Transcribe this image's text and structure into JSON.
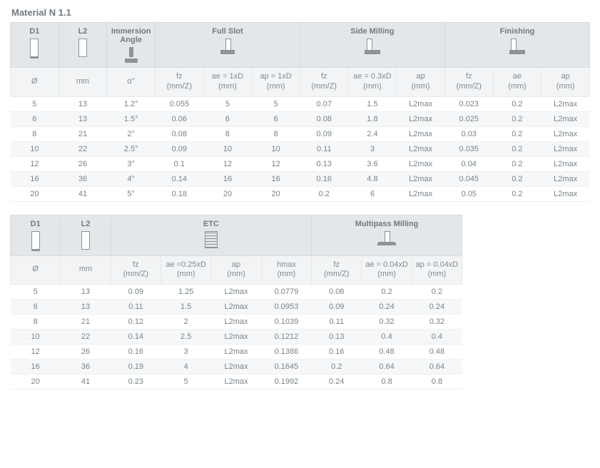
{
  "title": "Material N 1.1",
  "table1": {
    "groups": [
      {
        "label": "D1",
        "span": 1,
        "icon": "d1"
      },
      {
        "label": "L2",
        "span": 1,
        "icon": "l2"
      },
      {
        "label": "Immersion Angle",
        "span": 1,
        "icon": "imm"
      },
      {
        "label": "Full Slot",
        "span": 3,
        "icon": "slot"
      },
      {
        "label": "Side Milling",
        "span": 3,
        "icon": "side"
      },
      {
        "label": "Finishing",
        "span": 3,
        "icon": "fin"
      }
    ],
    "units": [
      "Ø",
      "mm",
      "α°",
      "fz (mm/Z)",
      "ae = 1xD (mm)",
      "ap = 1xD (mm)",
      "fz (mm/Z)",
      "ae = 0.3xD (mm)",
      "ap (mm)",
      "fz (mm/Z)",
      "ae (mm)",
      "ap (mm)"
    ],
    "rows": [
      [
        "5",
        "13",
        "1.2°",
        "0.055",
        "5",
        "5",
        "0.07",
        "1.5",
        "L2max",
        "0.023",
        "0.2",
        "L2max"
      ],
      [
        "6",
        "13",
        "1.5°",
        "0.06",
        "6",
        "6",
        "0.08",
        "1.8",
        "L2max",
        "0.025",
        "0.2",
        "L2max"
      ],
      [
        "8",
        "21",
        "2°",
        "0.08",
        "8",
        "8",
        "0.09",
        "2.4",
        "L2max",
        "0.03",
        "0.2",
        "L2max"
      ],
      [
        "10",
        "22",
        "2.5°",
        "0.09",
        "10",
        "10",
        "0.11",
        "3",
        "L2max",
        "0.035",
        "0.2",
        "L2max"
      ],
      [
        "12",
        "26",
        "3°",
        "0.1",
        "12",
        "12",
        "0.13",
        "3.6",
        "L2max",
        "0.04",
        "0.2",
        "L2max"
      ],
      [
        "16",
        "36",
        "4°",
        "0.14",
        "16",
        "16",
        "0.16",
        "4.8",
        "L2max",
        "0.045",
        "0.2",
        "L2max"
      ],
      [
        "20",
        "41",
        "5°",
        "0.18",
        "20",
        "20",
        "0.2",
        "6",
        "L2max",
        "0.05",
        "0.2",
        "L2max"
      ]
    ]
  },
  "table2": {
    "width_pct": 78,
    "groups": [
      {
        "label": "D1",
        "span": 1,
        "icon": "d1"
      },
      {
        "label": "L2",
        "span": 1,
        "icon": "l2"
      },
      {
        "label": "ETC",
        "span": 4,
        "icon": "etc"
      },
      {
        "label": "Multipass Milling",
        "span": 3,
        "icon": "multi"
      }
    ],
    "units": [
      "Ø",
      "mm",
      "fz (mm/Z)",
      "ae =0.25xD (mm)",
      "ap (mm)",
      "hmax (mm)",
      "fz (mm/Z)",
      "ae = 0.04xD (mm)",
      "ap = 0.04xD (mm)"
    ],
    "rows": [
      [
        "5",
        "13",
        "0.09",
        "1.25",
        "L2max",
        "0.0779",
        "0.08",
        "0.2",
        "0.2"
      ],
      [
        "6",
        "13",
        "0.11",
        "1.5",
        "L2max",
        "0.0953",
        "0.09",
        "0.24",
        "0.24"
      ],
      [
        "8",
        "21",
        "0.12",
        "2",
        "L2max",
        "0.1039",
        "0.11",
        "0.32",
        "0.32"
      ],
      [
        "10",
        "22",
        "0.14",
        "2.5",
        "L2max",
        "0.1212",
        "0.13",
        "0.4",
        "0.4"
      ],
      [
        "12",
        "26",
        "0.16",
        "3",
        "L2max",
        "0.1386",
        "0.16",
        "0.48",
        "0.48"
      ],
      [
        "16",
        "36",
        "0.19",
        "4",
        "L2max",
        "0.1645",
        "0.2",
        "0.64",
        "0.64"
      ],
      [
        "20",
        "41",
        "0.23",
        "5",
        "L2max",
        "0.1992",
        "0.24",
        "0.8",
        "0.8"
      ]
    ]
  }
}
